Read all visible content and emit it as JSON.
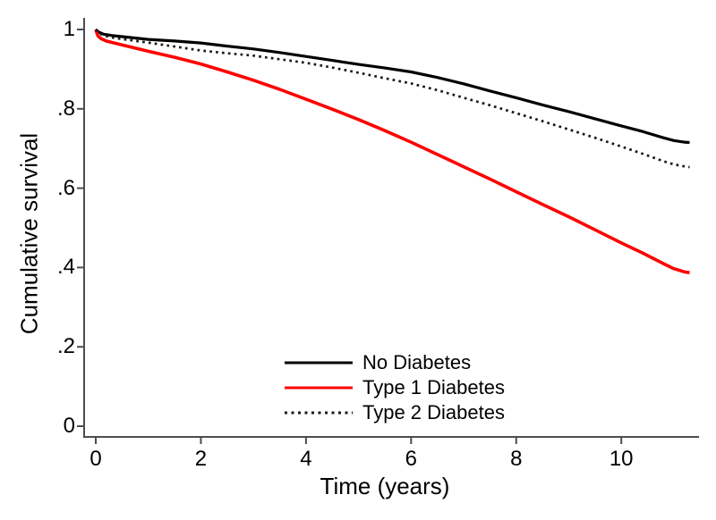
{
  "chart_data": {
    "type": "line",
    "chart_kind": "kaplan-meier-survival-curves",
    "title": "",
    "xlabel": "Time (years)",
    "ylabel": "Cumulative survival",
    "xlim": [
      0,
      11.5
    ],
    "ylim": [
      0,
      1.03
    ],
    "grid": false,
    "legend_position": "inside-bottom-center",
    "axis_color": "#4d4d4d",
    "x_ticks": [
      {
        "value": 0,
        "label": "0"
      },
      {
        "value": 2,
        "label": "2"
      },
      {
        "value": 4,
        "label": "4"
      },
      {
        "value": 6,
        "label": "6"
      },
      {
        "value": 8,
        "label": "8"
      },
      {
        "value": 10,
        "label": "10"
      }
    ],
    "y_ticks": [
      {
        "value": 0,
        "label": "0"
      },
      {
        "value": 0.2,
        "label": ".2"
      },
      {
        "value": 0.4,
        "label": ".4"
      },
      {
        "value": 0.6,
        "label": ".6"
      },
      {
        "value": 0.8,
        "label": ".8"
      },
      {
        "value": 1,
        "label": "1"
      }
    ],
    "series": [
      {
        "name": "No Diabetes",
        "color": "#000000",
        "line_style": "solid",
        "points": [
          [
            0,
            1.0
          ],
          [
            0.05,
            0.994
          ],
          [
            0.15,
            0.988
          ],
          [
            0.3,
            0.985
          ],
          [
            0.5,
            0.982
          ],
          [
            1,
            0.975
          ],
          [
            1.5,
            0.971
          ],
          [
            2,
            0.966
          ],
          [
            2.5,
            0.958
          ],
          [
            3,
            0.951
          ],
          [
            3.5,
            0.942
          ],
          [
            4,
            0.932
          ],
          [
            4.5,
            0.922
          ],
          [
            5,
            0.912
          ],
          [
            5.5,
            0.903
          ],
          [
            6,
            0.893
          ],
          [
            6.5,
            0.879
          ],
          [
            7,
            0.863
          ],
          [
            7.5,
            0.845
          ],
          [
            8,
            0.828
          ],
          [
            8.5,
            0.81
          ],
          [
            9,
            0.793
          ],
          [
            9.5,
            0.775
          ],
          [
            10,
            0.757
          ],
          [
            10.4,
            0.743
          ],
          [
            10.8,
            0.727
          ],
          [
            11,
            0.72
          ],
          [
            11.2,
            0.716
          ],
          [
            11.3,
            0.715
          ]
        ]
      },
      {
        "name": "Type 1 Diabetes",
        "color": "#ff0000",
        "line_style": "solid",
        "points": [
          [
            0,
            1.0
          ],
          [
            0.04,
            0.984
          ],
          [
            0.1,
            0.977
          ],
          [
            0.2,
            0.971
          ],
          [
            0.35,
            0.966
          ],
          [
            0.5,
            0.961
          ],
          [
            1,
            0.945
          ],
          [
            1.5,
            0.93
          ],
          [
            2,
            0.913
          ],
          [
            2.5,
            0.893
          ],
          [
            3,
            0.872
          ],
          [
            3.5,
            0.849
          ],
          [
            4,
            0.824
          ],
          [
            4.5,
            0.799
          ],
          [
            5,
            0.773
          ],
          [
            5.5,
            0.745
          ],
          [
            6,
            0.716
          ],
          [
            6.5,
            0.685
          ],
          [
            7,
            0.654
          ],
          [
            7.5,
            0.623
          ],
          [
            8,
            0.591
          ],
          [
            8.5,
            0.559
          ],
          [
            9,
            0.528
          ],
          [
            9.5,
            0.495
          ],
          [
            10,
            0.462
          ],
          [
            10.4,
            0.437
          ],
          [
            10.8,
            0.41
          ],
          [
            11,
            0.397
          ],
          [
            11.2,
            0.389
          ],
          [
            11.3,
            0.387
          ]
        ]
      },
      {
        "name": "Type 2 Diabetes",
        "color": "#1a1a1a",
        "line_style": "dotted",
        "points": [
          [
            0,
            1.0
          ],
          [
            0.05,
            0.992
          ],
          [
            0.15,
            0.985
          ],
          [
            0.3,
            0.98
          ],
          [
            0.5,
            0.976
          ],
          [
            1,
            0.967
          ],
          [
            1.5,
            0.957
          ],
          [
            2,
            0.947
          ],
          [
            2.5,
            0.94
          ],
          [
            3,
            0.934
          ],
          [
            3.5,
            0.925
          ],
          [
            4,
            0.916
          ],
          [
            4.5,
            0.904
          ],
          [
            5,
            0.891
          ],
          [
            5.5,
            0.877
          ],
          [
            6,
            0.864
          ],
          [
            6.5,
            0.847
          ],
          [
            7,
            0.828
          ],
          [
            7.5,
            0.809
          ],
          [
            8,
            0.789
          ],
          [
            8.5,
            0.769
          ],
          [
            9,
            0.748
          ],
          [
            9.5,
            0.727
          ],
          [
            10,
            0.705
          ],
          [
            10.4,
            0.687
          ],
          [
            10.8,
            0.668
          ],
          [
            11,
            0.66
          ],
          [
            11.2,
            0.655
          ],
          [
            11.3,
            0.653
          ]
        ]
      }
    ]
  }
}
